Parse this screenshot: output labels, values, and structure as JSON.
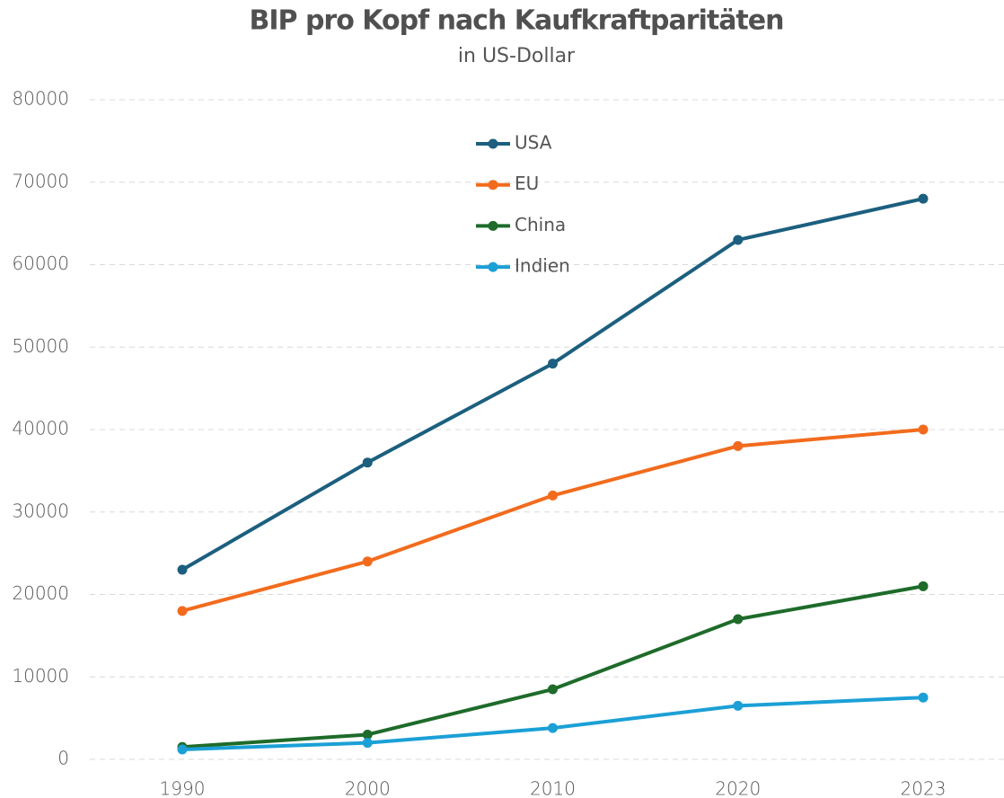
{
  "chart_data": {
    "type": "line",
    "title": "BIP pro Kopf nach Kaufkraftparitäten",
    "subtitle": "in US-Dollar",
    "categories": [
      "1990",
      "2000",
      "2010",
      "2020",
      "2023"
    ],
    "series": [
      {
        "name": "USA",
        "color": "#1c5f7f",
        "values": [
          23000,
          36000,
          48000,
          63000,
          68000
        ]
      },
      {
        "name": "EU",
        "color": "#f26b1d",
        "values": [
          18000,
          24000,
          32000,
          38000,
          40000
        ]
      },
      {
        "name": "China",
        "color": "#1e6b2a",
        "values": [
          1500,
          3000,
          8500,
          17000,
          21000
        ]
      },
      {
        "name": "Indien",
        "color": "#1ba0d6",
        "values": [
          1200,
          2000,
          3800,
          6500,
          7500
        ]
      }
    ],
    "ylim": [
      0,
      80000
    ],
    "yticks": [
      0,
      10000,
      20000,
      30000,
      40000,
      50000,
      60000,
      70000,
      80000
    ],
    "grid": true,
    "legend": "top"
  }
}
